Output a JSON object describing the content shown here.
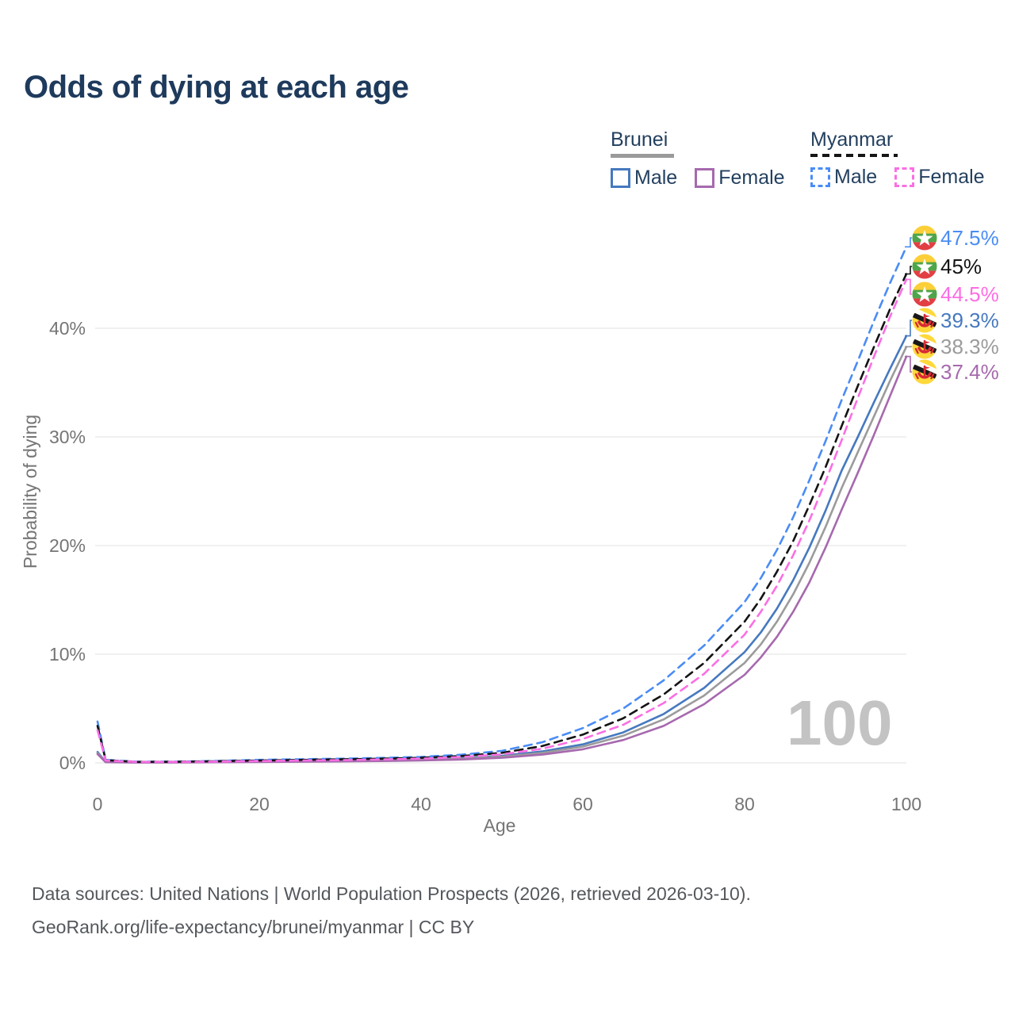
{
  "title": "Odds of dying at each age",
  "watermark_age": "100",
  "legend": {
    "groups": [
      {
        "name": "Brunei",
        "line_style": "solid",
        "header_line_color": "#9a9a9a",
        "items": [
          {
            "label": "Male",
            "color": "#4679bf",
            "dashed": false
          },
          {
            "label": "Female",
            "color": "#a669ae",
            "dashed": false
          }
        ]
      },
      {
        "name": "Myanmar",
        "line_style": "dashed",
        "header_line_color": "#161616",
        "items": [
          {
            "label": "Male",
            "color": "#4a8cf5",
            "dashed": true
          },
          {
            "label": "Female",
            "color": "#fb6ee4",
            "dashed": true
          }
        ]
      }
    ]
  },
  "chart_data": {
    "type": "line",
    "title": "Odds of dying at each age",
    "xlabel": "Age",
    "ylabel": "Probability of dying",
    "xlim": [
      0,
      100
    ],
    "ylim": [
      0,
      50
    ],
    "x_ticks": [
      0,
      20,
      40,
      60,
      80,
      100
    ],
    "y_ticks": [
      {
        "label": "0%",
        "value": 0
      },
      {
        "label": "10%",
        "value": 10
      },
      {
        "label": "20%",
        "value": 20
      },
      {
        "label": "30%",
        "value": 30
      },
      {
        "label": "40%",
        "value": 40
      }
    ],
    "grid": true,
    "legend_position": "top-right",
    "ages": [
      0,
      1,
      5,
      10,
      15,
      20,
      25,
      30,
      35,
      40,
      45,
      50,
      55,
      60,
      65,
      70,
      75,
      80,
      82,
      84,
      86,
      88,
      90,
      92,
      94,
      96,
      98,
      100
    ],
    "series": [
      {
        "name": "Brunei Male",
        "country": "Brunei",
        "sex": "Male",
        "color": "#4679bf",
        "dashed": false,
        "end_label": "39.3%",
        "values": [
          1.0,
          0.08,
          0.04,
          0.05,
          0.08,
          0.12,
          0.15,
          0.18,
          0.23,
          0.3,
          0.43,
          0.65,
          1.05,
          1.7,
          2.8,
          4.5,
          6.9,
          10.2,
          12.0,
          14.2,
          16.8,
          19.8,
          23.2,
          26.9,
          30.0,
          33.2,
          36.3,
          39.3
        ]
      },
      {
        "name": "Brunei Total",
        "country": "Brunei",
        "sex": "Both",
        "color": "#9b9b9b",
        "dashed": false,
        "end_label": "38.3%",
        "values": [
          0.9,
          0.07,
          0.035,
          0.045,
          0.07,
          0.1,
          0.13,
          0.16,
          0.2,
          0.27,
          0.38,
          0.57,
          0.92,
          1.5,
          2.5,
          4.0,
          6.2,
          9.2,
          10.9,
          13.0,
          15.5,
          18.4,
          21.7,
          25.3,
          28.6,
          31.9,
          35.2,
          38.3
        ]
      },
      {
        "name": "Brunei Female",
        "country": "Brunei",
        "sex": "Female",
        "color": "#a669ae",
        "dashed": false,
        "end_label": "37.4%",
        "values": [
          0.8,
          0.06,
          0.03,
          0.04,
          0.055,
          0.08,
          0.1,
          0.13,
          0.17,
          0.22,
          0.31,
          0.47,
          0.76,
          1.25,
          2.1,
          3.4,
          5.4,
          8.1,
          9.7,
          11.6,
          13.9,
          16.6,
          19.8,
          23.3,
          26.7,
          30.2,
          33.8,
          37.4
        ]
      },
      {
        "name": "Myanmar Male",
        "country": "Myanmar",
        "sex": "Male",
        "color": "#4a8cf5",
        "dashed": true,
        "end_label": "47.5%",
        "values": [
          3.8,
          0.28,
          0.1,
          0.12,
          0.18,
          0.28,
          0.33,
          0.38,
          0.45,
          0.55,
          0.75,
          1.1,
          1.9,
          3.2,
          5.0,
          7.6,
          10.8,
          14.8,
          17.0,
          19.6,
          22.6,
          26.0,
          29.6,
          33.4,
          37.0,
          40.7,
          44.2,
          47.5
        ]
      },
      {
        "name": "Myanmar Total",
        "country": "Myanmar",
        "sex": "Both",
        "color": "#141414",
        "dashed": true,
        "end_label": "45%",
        "values": [
          3.4,
          0.25,
          0.09,
          0.1,
          0.15,
          0.22,
          0.27,
          0.32,
          0.38,
          0.47,
          0.63,
          0.92,
          1.55,
          2.6,
          4.1,
          6.3,
          9.2,
          13.0,
          15.1,
          17.6,
          20.4,
          23.7,
          27.2,
          31.0,
          34.7,
          38.3,
          41.8,
          45.0
        ]
      },
      {
        "name": "Myanmar Female",
        "country": "Myanmar",
        "sex": "Female",
        "color": "#fb6ee4",
        "dashed": true,
        "end_label": "44.5%",
        "values": [
          3.0,
          0.22,
          0.08,
          0.09,
          0.12,
          0.17,
          0.21,
          0.25,
          0.31,
          0.39,
          0.53,
          0.78,
          1.3,
          2.2,
          3.5,
          5.5,
          8.2,
          11.8,
          13.9,
          16.3,
          19.1,
          22.3,
          25.9,
          29.7,
          33.6,
          37.4,
          41.1,
          44.5
        ]
      }
    ]
  },
  "footer": {
    "line1": "Data sources: United Nations | World Population Prospects (2026, retrieved 2026-03-10).",
    "line2": "GeoRank.org/life-expectancy/brunei/myanmar | CC BY"
  }
}
